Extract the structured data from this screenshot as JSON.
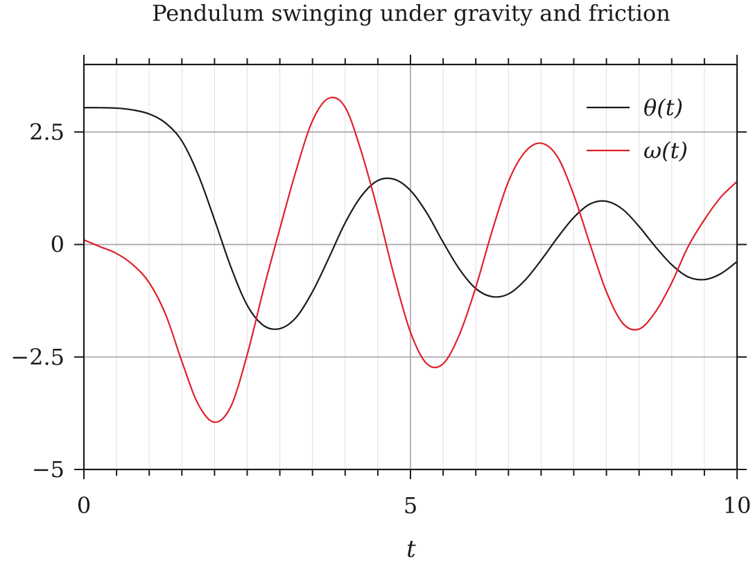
{
  "chart_data": {
    "type": "line",
    "title": "Pendulum swinging under gravity and friction",
    "xlabel": "t",
    "ylabel": "",
    "xlim": [
      0,
      10
    ],
    "ylim": [
      -5,
      4
    ],
    "x_ticks": [
      0,
      5,
      10
    ],
    "x_tick_labels": [
      "0",
      "5",
      "10"
    ],
    "y_ticks": [
      -5,
      -2.5,
      0,
      2.5
    ],
    "y_tick_labels": [
      "−5",
      "−2.5",
      "0",
      "2.5"
    ],
    "grid": true,
    "legend_position": "top-right",
    "series": [
      {
        "name": "θ(t)",
        "color": "#1a1a1a",
        "x": [
          0,
          0.25,
          0.5,
          0.75,
          1.0,
          1.25,
          1.5,
          1.75,
          2.0,
          2.25,
          2.5,
          2.75,
          3.0,
          3.25,
          3.5,
          3.75,
          4.0,
          4.25,
          4.5,
          4.75,
          5.0,
          5.25,
          5.5,
          5.75,
          6.0,
          6.25,
          6.5,
          6.75,
          7.0,
          7.25,
          7.5,
          7.75,
          8.0,
          8.25,
          8.5,
          8.75,
          9.0,
          9.25,
          9.5,
          9.75,
          10.0
        ],
        "y": [
          3.04,
          3.04,
          3.03,
          2.99,
          2.9,
          2.7,
          2.3,
          1.55,
          0.55,
          -0.5,
          -1.35,
          -1.8,
          -1.87,
          -1.62,
          -1.05,
          -0.3,
          0.48,
          1.08,
          1.42,
          1.45,
          1.2,
          0.7,
          0.05,
          -0.55,
          -0.98,
          -1.16,
          -1.1,
          -0.8,
          -0.35,
          0.15,
          0.6,
          0.9,
          0.96,
          0.78,
          0.4,
          -0.05,
          -0.45,
          -0.72,
          -0.78,
          -0.65,
          -0.38
        ]
      },
      {
        "name": "ω(t)",
        "color": "#e0202a",
        "x": [
          0,
          0.25,
          0.5,
          0.75,
          1.0,
          1.25,
          1.5,
          1.75,
          2.0,
          2.25,
          2.5,
          2.75,
          3.0,
          3.25,
          3.5,
          3.75,
          4.0,
          4.25,
          4.5,
          4.75,
          5.0,
          5.25,
          5.5,
          5.75,
          6.0,
          6.25,
          6.5,
          6.75,
          7.0,
          7.25,
          7.5,
          7.75,
          8.0,
          8.25,
          8.5,
          8.75,
          9.0,
          9.25,
          9.5,
          9.75,
          10.0
        ],
        "y": [
          0.1,
          -0.05,
          -0.2,
          -0.45,
          -0.85,
          -1.55,
          -2.6,
          -3.55,
          -3.95,
          -3.6,
          -2.45,
          -1.0,
          0.35,
          1.65,
          2.75,
          3.25,
          3.05,
          2.05,
          0.75,
          -0.7,
          -1.95,
          -2.65,
          -2.65,
          -2.0,
          -0.95,
          0.3,
          1.4,
          2.05,
          2.25,
          1.95,
          1.1,
          0.0,
          -1.05,
          -1.75,
          -1.88,
          -1.5,
          -0.85,
          -0.05,
          0.55,
          1.05,
          1.4
        ]
      }
    ]
  }
}
